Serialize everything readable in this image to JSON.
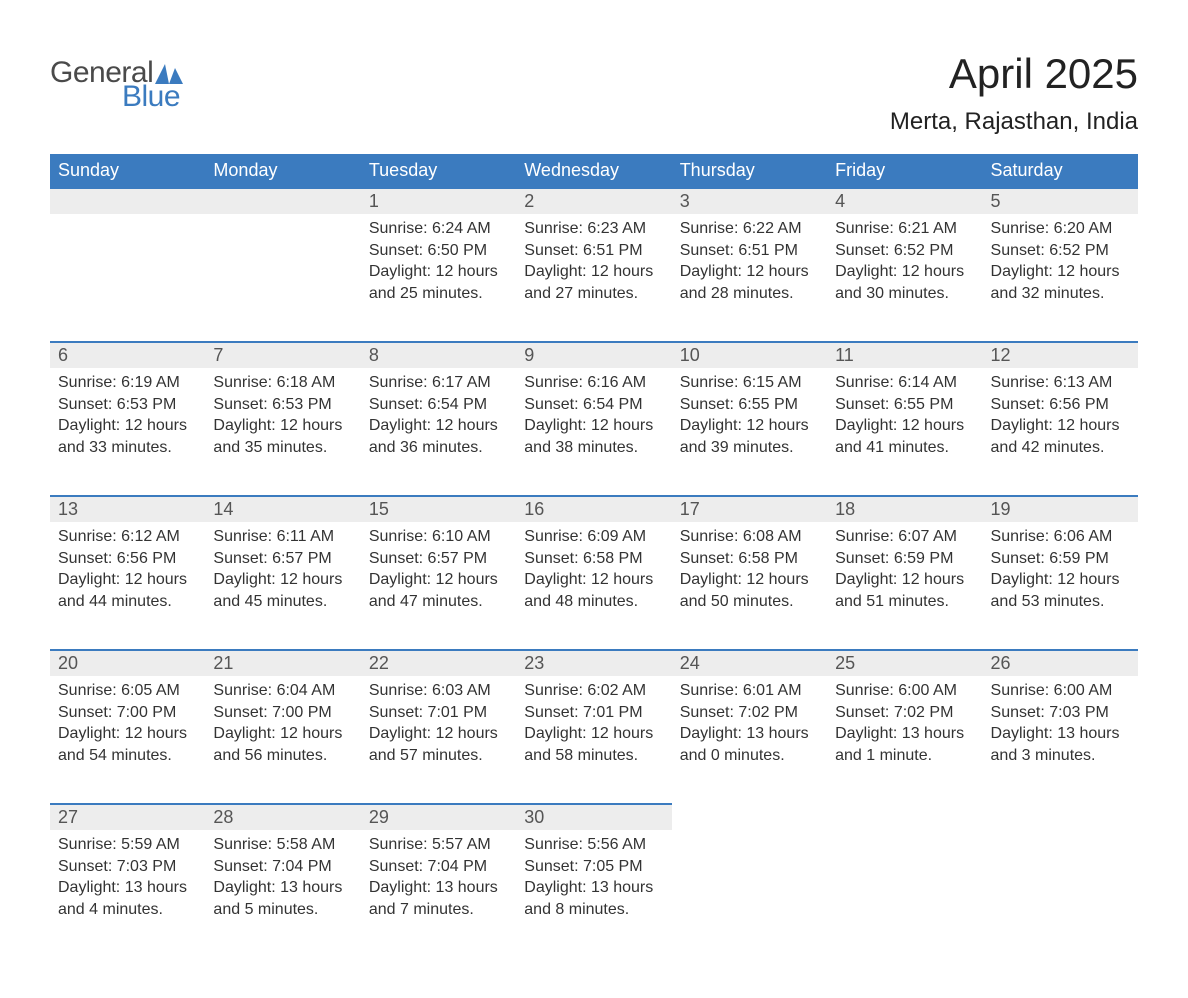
{
  "brand": {
    "text_general": "General",
    "text_blue": "Blue",
    "mark_color": "#3b7bbf",
    "text_gray_color": "#4a4a4a"
  },
  "title": "April 2025",
  "location": "Merta, Rajasthan, India",
  "colors": {
    "header_bg": "#3b7bbf",
    "header_text": "#ffffff",
    "daynum_bg": "#ededed",
    "daynum_border": "#3b7bbf",
    "body_text": "#333333",
    "page_bg": "#ffffff"
  },
  "fonts": {
    "title_size_pt": 32,
    "location_size_pt": 18,
    "header_size_pt": 14,
    "daynum_size_pt": 14,
    "body_size_pt": 12
  },
  "weekdays": [
    "Sunday",
    "Monday",
    "Tuesday",
    "Wednesday",
    "Thursday",
    "Friday",
    "Saturday"
  ],
  "weeks": [
    {
      "daynums": [
        "",
        "",
        "1",
        "2",
        "3",
        "4",
        "5"
      ],
      "cells": [
        {
          "empty": true
        },
        {
          "empty": true
        },
        {
          "sunrise": "Sunrise: 6:24 AM",
          "sunset": "Sunset: 6:50 PM",
          "daylight1": "Daylight: 12 hours",
          "daylight2": "and 25 minutes."
        },
        {
          "sunrise": "Sunrise: 6:23 AM",
          "sunset": "Sunset: 6:51 PM",
          "daylight1": "Daylight: 12 hours",
          "daylight2": "and 27 minutes."
        },
        {
          "sunrise": "Sunrise: 6:22 AM",
          "sunset": "Sunset: 6:51 PM",
          "daylight1": "Daylight: 12 hours",
          "daylight2": "and 28 minutes."
        },
        {
          "sunrise": "Sunrise: 6:21 AM",
          "sunset": "Sunset: 6:52 PM",
          "daylight1": "Daylight: 12 hours",
          "daylight2": "and 30 minutes."
        },
        {
          "sunrise": "Sunrise: 6:20 AM",
          "sunset": "Sunset: 6:52 PM",
          "daylight1": "Daylight: 12 hours",
          "daylight2": "and 32 minutes."
        }
      ]
    },
    {
      "daynums": [
        "6",
        "7",
        "8",
        "9",
        "10",
        "11",
        "12"
      ],
      "cells": [
        {
          "sunrise": "Sunrise: 6:19 AM",
          "sunset": "Sunset: 6:53 PM",
          "daylight1": "Daylight: 12 hours",
          "daylight2": "and 33 minutes."
        },
        {
          "sunrise": "Sunrise: 6:18 AM",
          "sunset": "Sunset: 6:53 PM",
          "daylight1": "Daylight: 12 hours",
          "daylight2": "and 35 minutes."
        },
        {
          "sunrise": "Sunrise: 6:17 AM",
          "sunset": "Sunset: 6:54 PM",
          "daylight1": "Daylight: 12 hours",
          "daylight2": "and 36 minutes."
        },
        {
          "sunrise": "Sunrise: 6:16 AM",
          "sunset": "Sunset: 6:54 PM",
          "daylight1": "Daylight: 12 hours",
          "daylight2": "and 38 minutes."
        },
        {
          "sunrise": "Sunrise: 6:15 AM",
          "sunset": "Sunset: 6:55 PM",
          "daylight1": "Daylight: 12 hours",
          "daylight2": "and 39 minutes."
        },
        {
          "sunrise": "Sunrise: 6:14 AM",
          "sunset": "Sunset: 6:55 PM",
          "daylight1": "Daylight: 12 hours",
          "daylight2": "and 41 minutes."
        },
        {
          "sunrise": "Sunrise: 6:13 AM",
          "sunset": "Sunset: 6:56 PM",
          "daylight1": "Daylight: 12 hours",
          "daylight2": "and 42 minutes."
        }
      ]
    },
    {
      "daynums": [
        "13",
        "14",
        "15",
        "16",
        "17",
        "18",
        "19"
      ],
      "cells": [
        {
          "sunrise": "Sunrise: 6:12 AM",
          "sunset": "Sunset: 6:56 PM",
          "daylight1": "Daylight: 12 hours",
          "daylight2": "and 44 minutes."
        },
        {
          "sunrise": "Sunrise: 6:11 AM",
          "sunset": "Sunset: 6:57 PM",
          "daylight1": "Daylight: 12 hours",
          "daylight2": "and 45 minutes."
        },
        {
          "sunrise": "Sunrise: 6:10 AM",
          "sunset": "Sunset: 6:57 PM",
          "daylight1": "Daylight: 12 hours",
          "daylight2": "and 47 minutes."
        },
        {
          "sunrise": "Sunrise: 6:09 AM",
          "sunset": "Sunset: 6:58 PM",
          "daylight1": "Daylight: 12 hours",
          "daylight2": "and 48 minutes."
        },
        {
          "sunrise": "Sunrise: 6:08 AM",
          "sunset": "Sunset: 6:58 PM",
          "daylight1": "Daylight: 12 hours",
          "daylight2": "and 50 minutes."
        },
        {
          "sunrise": "Sunrise: 6:07 AM",
          "sunset": "Sunset: 6:59 PM",
          "daylight1": "Daylight: 12 hours",
          "daylight2": "and 51 minutes."
        },
        {
          "sunrise": "Sunrise: 6:06 AM",
          "sunset": "Sunset: 6:59 PM",
          "daylight1": "Daylight: 12 hours",
          "daylight2": "and 53 minutes."
        }
      ]
    },
    {
      "daynums": [
        "20",
        "21",
        "22",
        "23",
        "24",
        "25",
        "26"
      ],
      "cells": [
        {
          "sunrise": "Sunrise: 6:05 AM",
          "sunset": "Sunset: 7:00 PM",
          "daylight1": "Daylight: 12 hours",
          "daylight2": "and 54 minutes."
        },
        {
          "sunrise": "Sunrise: 6:04 AM",
          "sunset": "Sunset: 7:00 PM",
          "daylight1": "Daylight: 12 hours",
          "daylight2": "and 56 minutes."
        },
        {
          "sunrise": "Sunrise: 6:03 AM",
          "sunset": "Sunset: 7:01 PM",
          "daylight1": "Daylight: 12 hours",
          "daylight2": "and 57 minutes."
        },
        {
          "sunrise": "Sunrise: 6:02 AM",
          "sunset": "Sunset: 7:01 PM",
          "daylight1": "Daylight: 12 hours",
          "daylight2": "and 58 minutes."
        },
        {
          "sunrise": "Sunrise: 6:01 AM",
          "sunset": "Sunset: 7:02 PM",
          "daylight1": "Daylight: 13 hours",
          "daylight2": "and 0 minutes."
        },
        {
          "sunrise": "Sunrise: 6:00 AM",
          "sunset": "Sunset: 7:02 PM",
          "daylight1": "Daylight: 13 hours",
          "daylight2": "and 1 minute."
        },
        {
          "sunrise": "Sunrise: 6:00 AM",
          "sunset": "Sunset: 7:03 PM",
          "daylight1": "Daylight: 13 hours",
          "daylight2": "and 3 minutes."
        }
      ]
    },
    {
      "daynums": [
        "27",
        "28",
        "29",
        "30",
        "",
        "",
        ""
      ],
      "cells": [
        {
          "sunrise": "Sunrise: 5:59 AM",
          "sunset": "Sunset: 7:03 PM",
          "daylight1": "Daylight: 13 hours",
          "daylight2": "and 4 minutes."
        },
        {
          "sunrise": "Sunrise: 5:58 AM",
          "sunset": "Sunset: 7:04 PM",
          "daylight1": "Daylight: 13 hours",
          "daylight2": "and 5 minutes."
        },
        {
          "sunrise": "Sunrise: 5:57 AM",
          "sunset": "Sunset: 7:04 PM",
          "daylight1": "Daylight: 13 hours",
          "daylight2": "and 7 minutes."
        },
        {
          "sunrise": "Sunrise: 5:56 AM",
          "sunset": "Sunset: 7:05 PM",
          "daylight1": "Daylight: 13 hours",
          "daylight2": "and 8 minutes."
        },
        {
          "empty": true
        },
        {
          "empty": true
        },
        {
          "empty": true
        }
      ]
    }
  ]
}
